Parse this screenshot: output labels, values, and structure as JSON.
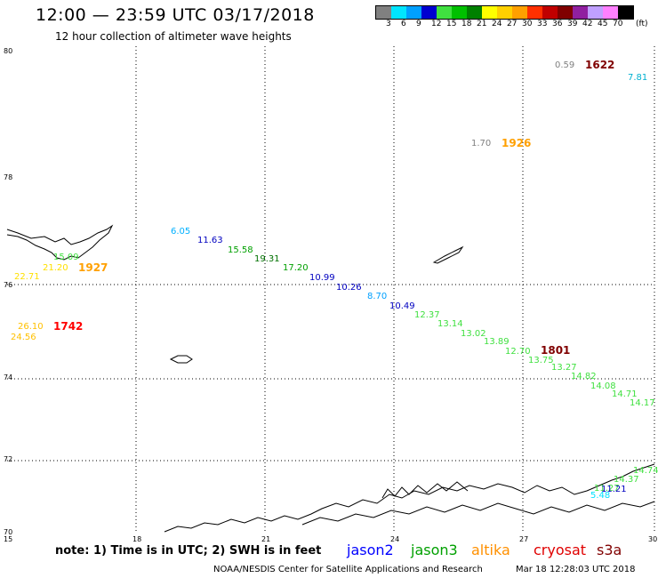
{
  "header": {
    "title": "12:00 — 23:59 UTC 03/17/2018",
    "subtitle": "12 hour collection of altimeter wave heights"
  },
  "legend": {
    "colors": [
      "#808080",
      "#00e5ff",
      "#00a0ff",
      "#0000d0",
      "#40e040",
      "#00c000",
      "#008000",
      "#ffff00",
      "#ffd000",
      "#ffa000",
      "#ff3000",
      "#c00000",
      "#800000",
      "#9020a0",
      "#c0a0ff",
      "#ff80ff",
      "#000000"
    ],
    "labels": [
      "3",
      "6",
      "9",
      "12",
      "15",
      "18",
      "21",
      "24",
      "27",
      "30",
      "33",
      "36",
      "39",
      "42",
      "45",
      "70",
      "(ft)"
    ]
  },
  "axes": {
    "y_labels": [
      "80",
      "78",
      "76",
      "74",
      "72",
      "70"
    ],
    "x_labels": [
      "15",
      "18",
      "21",
      "24",
      "27",
      "30"
    ]
  },
  "observations": [
    {
      "text": "0.59",
      "color": "#808080"
    },
    {
      "text": "7.81",
      "color": "#00b0d0"
    },
    {
      "text": "1.70",
      "color": "#808080"
    },
    {
      "text": "6.05",
      "color": "#00b0ff"
    },
    {
      "text": "11.63",
      "color": "#0000c0"
    },
    {
      "text": "15.58",
      "color": "#00a000"
    },
    {
      "text": "19.31",
      "color": "#007000"
    },
    {
      "text": "17.20",
      "color": "#00a000"
    },
    {
      "text": "10.99",
      "color": "#0000c0"
    },
    {
      "text": "10.26",
      "color": "#0000c0"
    },
    {
      "text": "8.70",
      "color": "#00a0ff"
    },
    {
      "text": "10.49",
      "color": "#0000c0"
    },
    {
      "text": "15.09",
      "color": "#40e040"
    },
    {
      "text": "21.20",
      "color": "#ffe000"
    },
    {
      "text": "22.71",
      "color": "#ffe000"
    },
    {
      "text": "26.10",
      "color": "#ffc000"
    },
    {
      "text": "24.56",
      "color": "#ffc000"
    },
    {
      "text": "12.37",
      "color": "#40e040"
    },
    {
      "text": "13.14",
      "color": "#40e040"
    },
    {
      "text": "13.02",
      "color": "#40e040"
    },
    {
      "text": "13.89",
      "color": "#40e040"
    },
    {
      "text": "12.70",
      "color": "#40e040"
    },
    {
      "text": "13.75",
      "color": "#40e040"
    },
    {
      "text": "13.27",
      "color": "#40e040"
    },
    {
      "text": "14.82",
      "color": "#40e040"
    },
    {
      "text": "14.08",
      "color": "#40e040"
    },
    {
      "text": "14.71",
      "color": "#40e040"
    },
    {
      "text": "14.17",
      "color": "#40e040"
    },
    {
      "text": "14.74",
      "color": "#40e040"
    },
    {
      "text": "14.37",
      "color": "#40e040"
    },
    {
      "text": "11.27",
      "color": "#40e040"
    },
    {
      "text": "11.21",
      "color": "#0000c0"
    },
    {
      "text": "5.48",
      "color": "#00e0ff"
    }
  ],
  "times": [
    {
      "text": "1622",
      "color": "#800000"
    },
    {
      "text": "1926",
      "color": "#ffa000"
    },
    {
      "text": "1927",
      "color": "#ffa000"
    },
    {
      "text": "1742",
      "color": "#ff0000"
    },
    {
      "text": "1801",
      "color": "#800000"
    }
  ],
  "footer": {
    "note": "note: 1) Time is in UTC; 2) SWH is in feet",
    "satellites": [
      {
        "name": "jason2",
        "color": "#0000ff"
      },
      {
        "name": "jason3",
        "color": "#00a000"
      },
      {
        "name": "altika",
        "color": "#ff9000"
      },
      {
        "name": "cryosat",
        "color": "#e00000"
      },
      {
        "name": "s3a",
        "color": "#800000"
      }
    ],
    "credit": "NOAA/NESDIS Center for Satellite Applications and Research",
    "timestamp": "Mar 18 12:28:03 UTC 2018"
  }
}
